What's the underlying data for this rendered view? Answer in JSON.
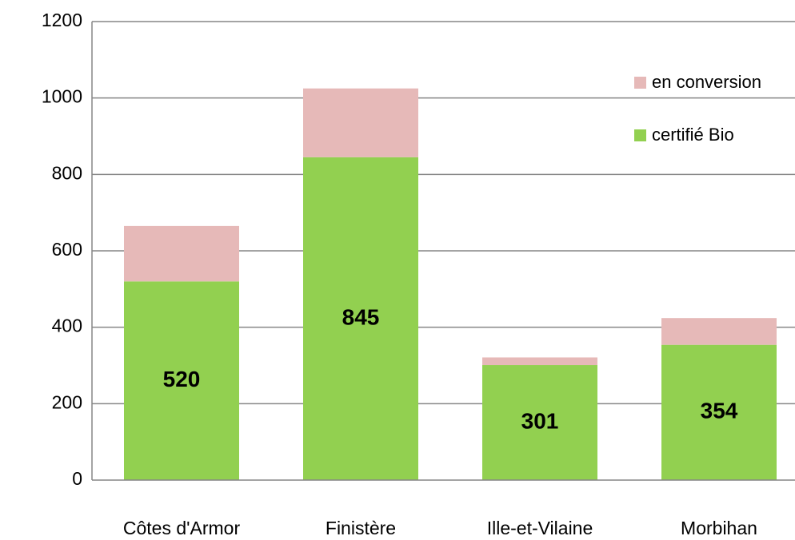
{
  "chart_data": {
    "type": "bar",
    "stacked": true,
    "categories": [
      "Côtes d'Armor",
      "Finistère",
      "Ille-et-Vilaine",
      "Morbihan"
    ],
    "series": [
      {
        "name": "certifié Bio",
        "color": "#92d050",
        "values": [
          520,
          845,
          301,
          354
        ]
      },
      {
        "name": "en conversion",
        "color": "#e6b9b8",
        "values": [
          145,
          180,
          20,
          70
        ]
      }
    ],
    "data_labels_series": 0,
    "ylim": [
      0,
      1200
    ],
    "yticks": [
      0,
      200,
      400,
      600,
      800,
      1000,
      1200
    ],
    "grid": true,
    "legend": "right"
  }
}
